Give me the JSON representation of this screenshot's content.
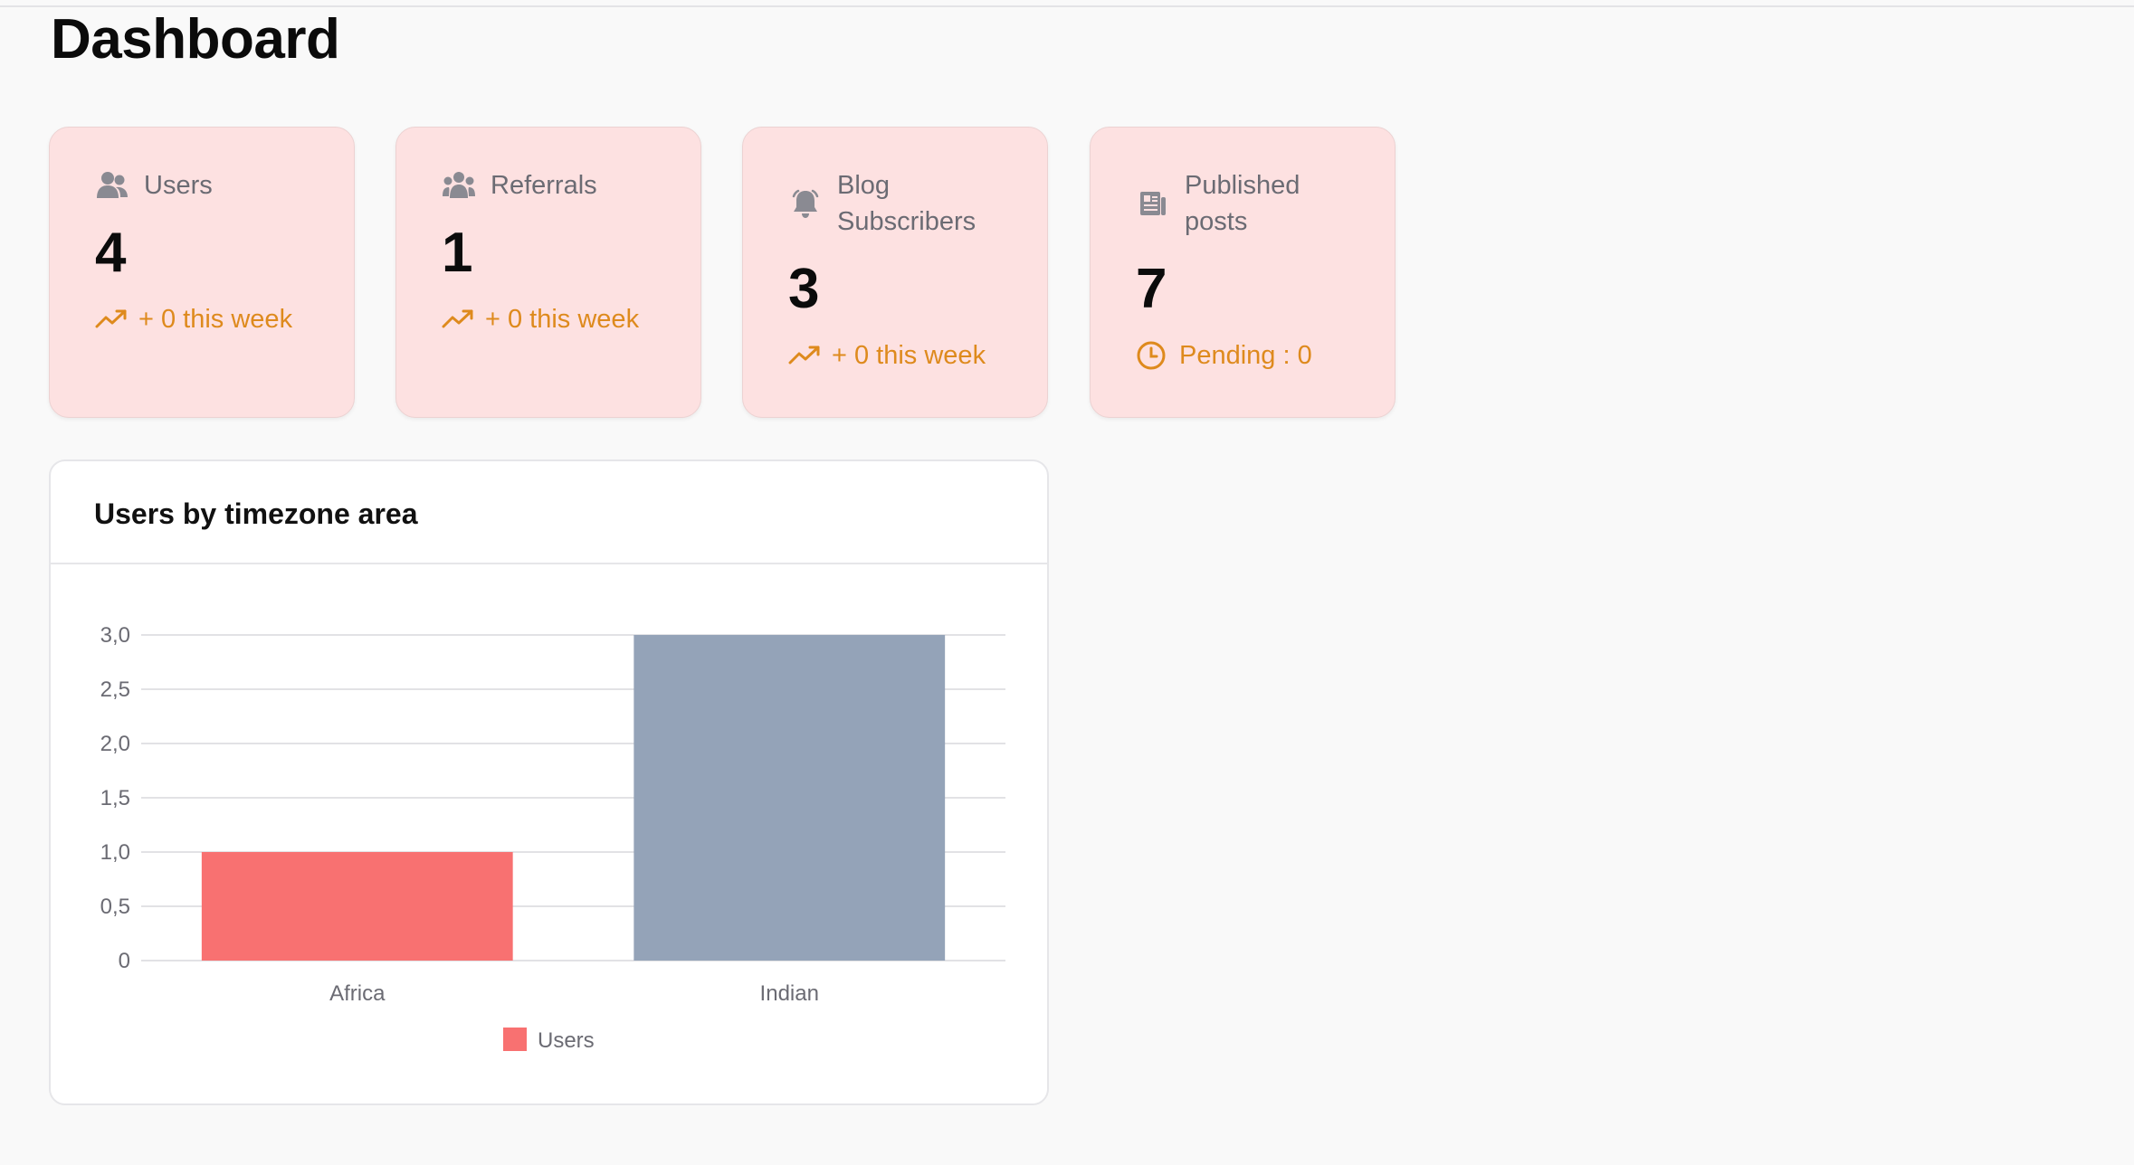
{
  "page": {
    "title": "Dashboard"
  },
  "stats": [
    {
      "label": "Users",
      "value": "4",
      "trend": "+ 0 this week",
      "icon": "users-icon"
    },
    {
      "label": "Referrals",
      "value": "1",
      "trend": "+ 0 this week",
      "icon": "referrals-icon"
    },
    {
      "label": "Blog Subscribers",
      "value": "3",
      "trend": "+ 0 this week",
      "icon": "bell-icon"
    },
    {
      "label": "Published posts",
      "value": "7",
      "trend": "Pending : 0",
      "icon": "newspaper-icon"
    }
  ],
  "colors": {
    "card_bg": "#fde1e1",
    "accent": "#de8a1d",
    "bar_africa": "#f87171",
    "bar_indian": "#94a3b8"
  },
  "chart_card": {
    "title": "Users by timezone area"
  },
  "chart_data": {
    "type": "bar",
    "categories": [
      "Africa",
      "Indian"
    ],
    "series": [
      {
        "name": "Users",
        "values": [
          1,
          3
        ]
      }
    ],
    "ylim": [
      0,
      3
    ],
    "yticks": [
      "0",
      "0,5",
      "1,0",
      "1,5",
      "2,0",
      "2,5",
      "3,0"
    ],
    "bar_colors": [
      "#f87171",
      "#94a3b8"
    ],
    "grid": true,
    "legend_position": "bottom"
  }
}
